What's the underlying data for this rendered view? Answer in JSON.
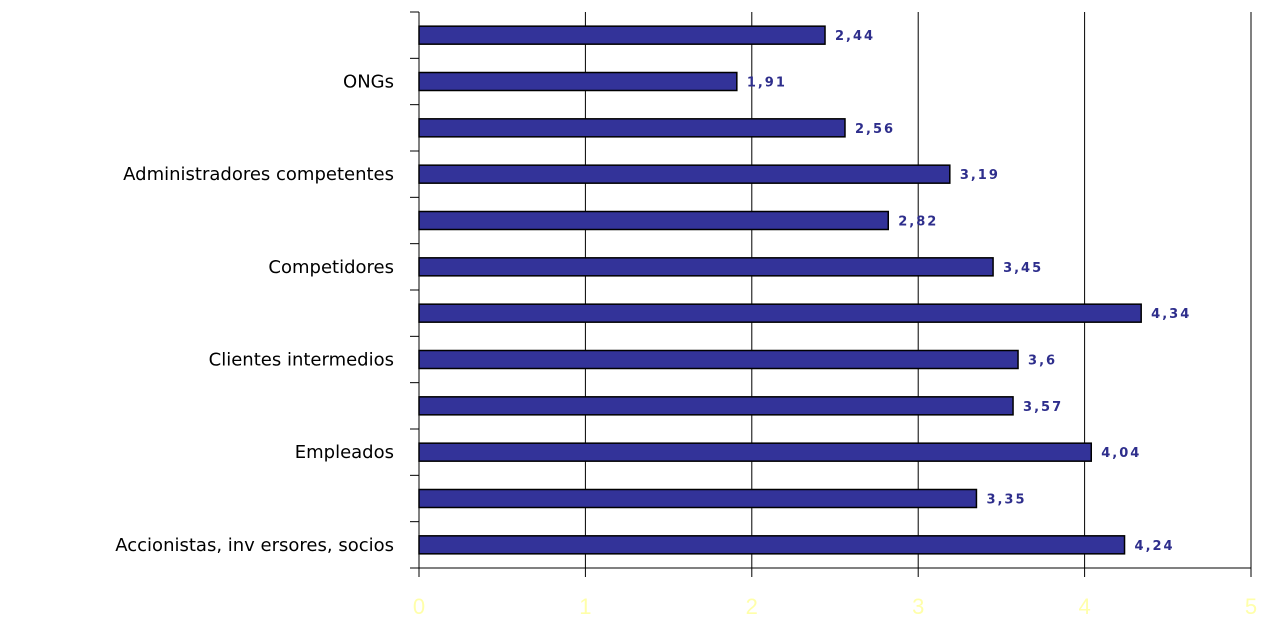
{
  "chart_data": {
    "type": "bar",
    "orientation": "horizontal",
    "categories": [
      "",
      "ONGs",
      "",
      "Administradores competentes",
      "",
      "Competidores",
      "",
      "Clientes intermedios",
      "",
      "Empleados",
      "",
      "Accionistas, inv ersores, socios"
    ],
    "values": [
      2.44,
      1.91,
      2.56,
      3.19,
      2.82,
      3.45,
      4.34,
      3.6,
      3.57,
      4.04,
      3.35,
      4.24
    ],
    "value_labels": [
      "2,44",
      "1,91",
      "2,56",
      "3,19",
      "2,82",
      "3,45",
      "4,34",
      "3,6",
      "3,57",
      "4,04",
      "3,35",
      "4,24"
    ],
    "xlim": [
      0,
      5
    ],
    "x_ticks": [
      "0",
      "1",
      "2",
      "3",
      "4",
      "5"
    ],
    "grid": true,
    "title": "",
    "xlabel": "",
    "ylabel": "",
    "colors": {
      "bar_fill": "#333399",
      "bar_stroke": "#000000",
      "value_label": "#2E2E8C",
      "tick_label": "#FFFFAA",
      "grid": "#000000"
    }
  }
}
